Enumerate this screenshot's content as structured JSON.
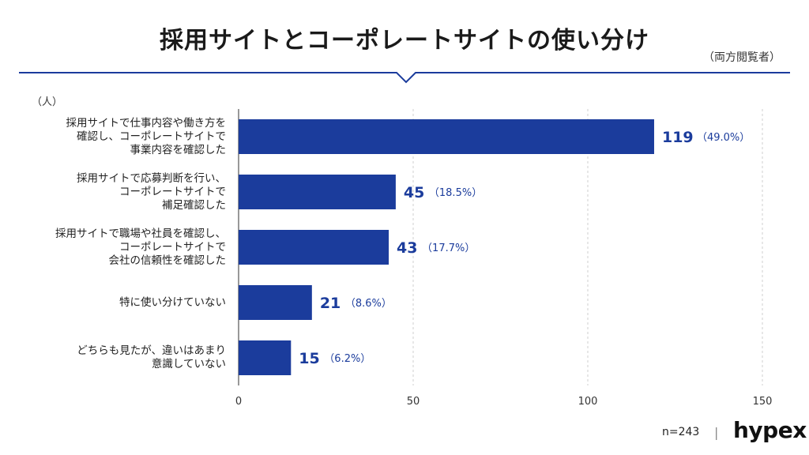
{
  "title": "採用サイトとコーポレートサイトの使い分け",
  "subtitle": "（両方閲覧者）",
  "unit_label": "（人）",
  "footer": {
    "n": "n=243",
    "separator": "|",
    "logo": "hypex"
  },
  "colors": {
    "bar": "#1b3c9c",
    "header_line": "#1b3c9c",
    "grid": "#cfcfcf",
    "value_text": "#1b3c9c"
  },
  "chart_data": {
    "type": "bar",
    "orientation": "horizontal",
    "categories": [
      [
        "採用サイトで仕事内容や働き方を",
        "確認し、コーポレートサイトで",
        "事業内容を確認した"
      ],
      [
        "採用サイトで応募判断を行い、",
        "コーポレートサイトで",
        "補足確認した"
      ],
      [
        "採用サイトで職場や社員を確認し、",
        "コーポレートサイトで",
        "会社の信頼性を確認した"
      ],
      [
        "特に使い分けていない"
      ],
      [
        "どちらも見たが、違いはあまり",
        "意識していない"
      ]
    ],
    "values": [
      119,
      45,
      43,
      21,
      15
    ],
    "value_labels": [
      "119",
      "45",
      "43",
      "21",
      "15"
    ],
    "percent_labels": [
      "（49.0%）",
      "（18.5%）",
      "（17.7%）",
      "（8.6%）",
      "（6.2%）"
    ],
    "xlim": [
      0,
      150
    ],
    "xticks": [
      0,
      50,
      100,
      150
    ],
    "grid": true
  }
}
